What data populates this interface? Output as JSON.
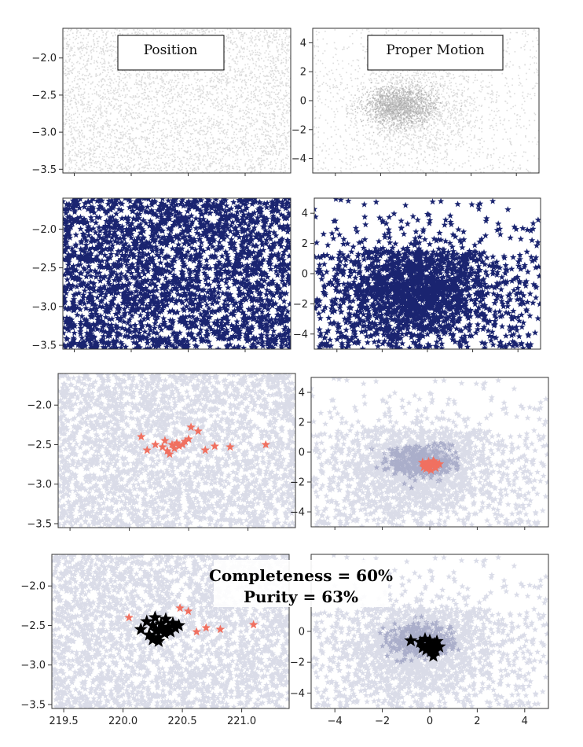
{
  "labels": {
    "position": "Position",
    "proper_motion": "Proper Motion",
    "completeness": "Completeness = 60%",
    "purity": "Purity = 63%"
  },
  "colors": {
    "background_points": "#9a9a9a",
    "field_stars": "#1a2470",
    "candidates": "#f07060",
    "selected": "#000000"
  },
  "chart_data": [
    {
      "id": "r1-position",
      "type": "scatter",
      "title": "Position",
      "xlim": [
        219.4,
        221.4
      ],
      "ylim": [
        -3.55,
        -1.6
      ],
      "yticks": [
        "−2.0",
        "−2.5",
        "−3.0",
        "−3.5"
      ],
      "ytick_values": [
        -2.0,
        -2.5,
        -3.0,
        -3.5
      ],
      "xticks": [],
      "layers": [
        "background"
      ]
    },
    {
      "id": "r1-proper-motion",
      "type": "scatter",
      "title": "Proper Motion",
      "xlim": [
        -5,
        5
      ],
      "ylim": [
        -5,
        5
      ],
      "yticks": [
        "4",
        "2",
        "0",
        "−2",
        "−4"
      ],
      "ytick_values": [
        4,
        2,
        0,
        -2,
        -4
      ],
      "xticks": [],
      "layers": [
        "background",
        "pm-concentration"
      ]
    },
    {
      "id": "r2-position",
      "type": "scatter",
      "xlim": [
        219.4,
        221.4
      ],
      "ylim": [
        -3.55,
        -1.6
      ],
      "yticks": [
        "−2.0",
        "−2.5",
        "−3.0",
        "−3.5"
      ],
      "ytick_values": [
        -2.0,
        -2.5,
        -3.0,
        -3.5
      ],
      "xticks": [],
      "layers": [
        "field-stars-dense"
      ]
    },
    {
      "id": "r2-proper-motion",
      "type": "scatter",
      "xlim": [
        -5,
        5
      ],
      "ylim": [
        -5,
        5
      ],
      "yticks": [
        "4",
        "2",
        "0",
        "−2",
        "−4"
      ],
      "ytick_values": [
        4,
        2,
        0,
        -2,
        -4
      ],
      "xticks": [],
      "layers": [
        "field-stars-dense"
      ]
    },
    {
      "id": "r3-position",
      "type": "scatter",
      "xlim": [
        219.4,
        221.4
      ],
      "ylim": [
        -3.55,
        -1.6
      ],
      "yticks": [
        "−2.0",
        "−2.5",
        "−3.0",
        "−3.5"
      ],
      "ytick_values": [
        -2.0,
        -2.5,
        -3.0,
        -3.5
      ],
      "xticks": [],
      "layers": [
        "field-stars-faint",
        "candidates"
      ]
    },
    {
      "id": "r3-proper-motion",
      "type": "scatter",
      "xlim": [
        -5,
        5
      ],
      "ylim": [
        -5,
        5
      ],
      "yticks": [
        "4",
        "2",
        "0",
        "−2",
        "−4"
      ],
      "ytick_values": [
        4,
        2,
        0,
        -2,
        -4
      ],
      "xticks": [],
      "layers": [
        "field-stars-faint",
        "candidates"
      ]
    },
    {
      "id": "r4-position",
      "type": "scatter",
      "xlim": [
        219.4,
        221.4
      ],
      "ylim": [
        -3.55,
        -1.6
      ],
      "yticks": [
        "−2.0",
        "−2.5",
        "−3.0",
        "−3.5"
      ],
      "ytick_values": [
        -2.0,
        -2.5,
        -3.0,
        -3.5
      ],
      "xticks": [
        "219.5",
        "220.0",
        "220.5",
        "221.0"
      ],
      "xtick_values": [
        219.5,
        220.0,
        220.5,
        221.0
      ],
      "layers": [
        "field-stars-faint",
        "candidates",
        "selected"
      ]
    },
    {
      "id": "r4-proper-motion",
      "type": "scatter",
      "xlim": [
        -5,
        5
      ],
      "ylim": [
        -5,
        5
      ],
      "yticks": [
        "0",
        "−2",
        "−4"
      ],
      "ytick_values": [
        0,
        -2,
        -4
      ],
      "xticks": [
        "−4",
        "−2",
        "0",
        "2",
        "4"
      ],
      "xtick_values": [
        -4,
        -2,
        0,
        2,
        4
      ],
      "layers": [
        "field-stars-faint",
        "selected"
      ]
    }
  ],
  "candidates_position": [
    [
      220.1,
      -2.4
    ],
    [
      220.15,
      -2.57
    ],
    [
      220.22,
      -2.5
    ],
    [
      220.28,
      -2.53
    ],
    [
      220.3,
      -2.45
    ],
    [
      220.32,
      -2.58
    ],
    [
      220.34,
      -2.62
    ],
    [
      220.36,
      -2.5
    ],
    [
      220.38,
      -2.55
    ],
    [
      220.4,
      -2.48
    ],
    [
      220.42,
      -2.52
    ],
    [
      220.45,
      -2.5
    ],
    [
      220.47,
      -2.46
    ],
    [
      220.5,
      -2.43
    ],
    [
      220.52,
      -2.28
    ],
    [
      220.58,
      -2.33
    ],
    [
      220.64,
      -2.57
    ],
    [
      220.72,
      -2.52
    ],
    [
      220.85,
      -2.53
    ],
    [
      221.15,
      -2.5
    ]
  ],
  "candidates_pm": [
    [
      -0.3,
      -0.7
    ],
    [
      -0.2,
      -0.9
    ],
    [
      -0.1,
      -0.8
    ],
    [
      0.0,
      -1.0
    ],
    [
      0.1,
      -0.9
    ],
    [
      0.2,
      -0.7
    ],
    [
      0.3,
      -0.85
    ],
    [
      -0.15,
      -1.1
    ],
    [
      0.05,
      -1.2
    ],
    [
      0.15,
      -0.6
    ],
    [
      -0.05,
      -0.65
    ],
    [
      0.25,
      -1.05
    ],
    [
      0.4,
      -0.8
    ],
    [
      -0.25,
      -1.0
    ]
  ],
  "candidates_r4_position": [
    [
      220.05,
      -2.4
    ],
    [
      220.48,
      -2.28
    ],
    [
      220.55,
      -2.32
    ],
    [
      220.62,
      -2.58
    ],
    [
      220.7,
      -2.53
    ],
    [
      220.82,
      -2.55
    ],
    [
      221.1,
      -2.49
    ]
  ],
  "selected_position": [
    [
      220.15,
      -2.55
    ],
    [
      220.2,
      -2.45
    ],
    [
      220.22,
      -2.62
    ],
    [
      220.25,
      -2.5
    ],
    [
      220.27,
      -2.4
    ],
    [
      220.28,
      -2.57
    ],
    [
      220.3,
      -2.65
    ],
    [
      220.32,
      -2.48
    ],
    [
      220.33,
      -2.55
    ],
    [
      220.35,
      -2.6
    ],
    [
      220.36,
      -2.42
    ],
    [
      220.38,
      -2.52
    ],
    [
      220.4,
      -2.58
    ],
    [
      220.42,
      -2.47
    ],
    [
      220.44,
      -2.53
    ],
    [
      220.47,
      -2.5
    ],
    [
      220.3,
      -2.7
    ],
    [
      220.25,
      -2.68
    ]
  ],
  "selected_pm": [
    [
      -0.8,
      -0.6
    ],
    [
      -0.4,
      -0.7
    ],
    [
      -0.2,
      -0.5
    ],
    [
      -0.1,
      -0.9
    ],
    [
      0.0,
      -0.6
    ],
    [
      0.1,
      -1.0
    ],
    [
      0.2,
      -0.8
    ],
    [
      0.3,
      -0.65
    ],
    [
      0.4,
      -1.0
    ],
    [
      -0.3,
      -1.05
    ],
    [
      0.05,
      -1.3
    ],
    [
      0.15,
      -1.6
    ],
    [
      -0.15,
      -1.2
    ],
    [
      0.25,
      -1.25
    ]
  ]
}
